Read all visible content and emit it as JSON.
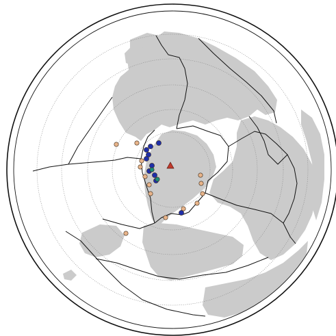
{
  "map": {
    "projection": "polar-azimuthal",
    "colors": {
      "background": "#ffffff",
      "land": "#cbcbcb",
      "plate_boundary": "#111111",
      "graticule": "#8a8a8a",
      "site_tan": "#e8b48a",
      "site_blue": "#1f2fa8",
      "site_teal": "#1a8f7a",
      "reference_marker": "#c0392b"
    },
    "markers": {
      "reference": {
        "shape": "triangle",
        "color_key": "reference_marker"
      },
      "site_types": [
        "tan-circle",
        "blue-circle",
        "teal-circle"
      ]
    }
  }
}
